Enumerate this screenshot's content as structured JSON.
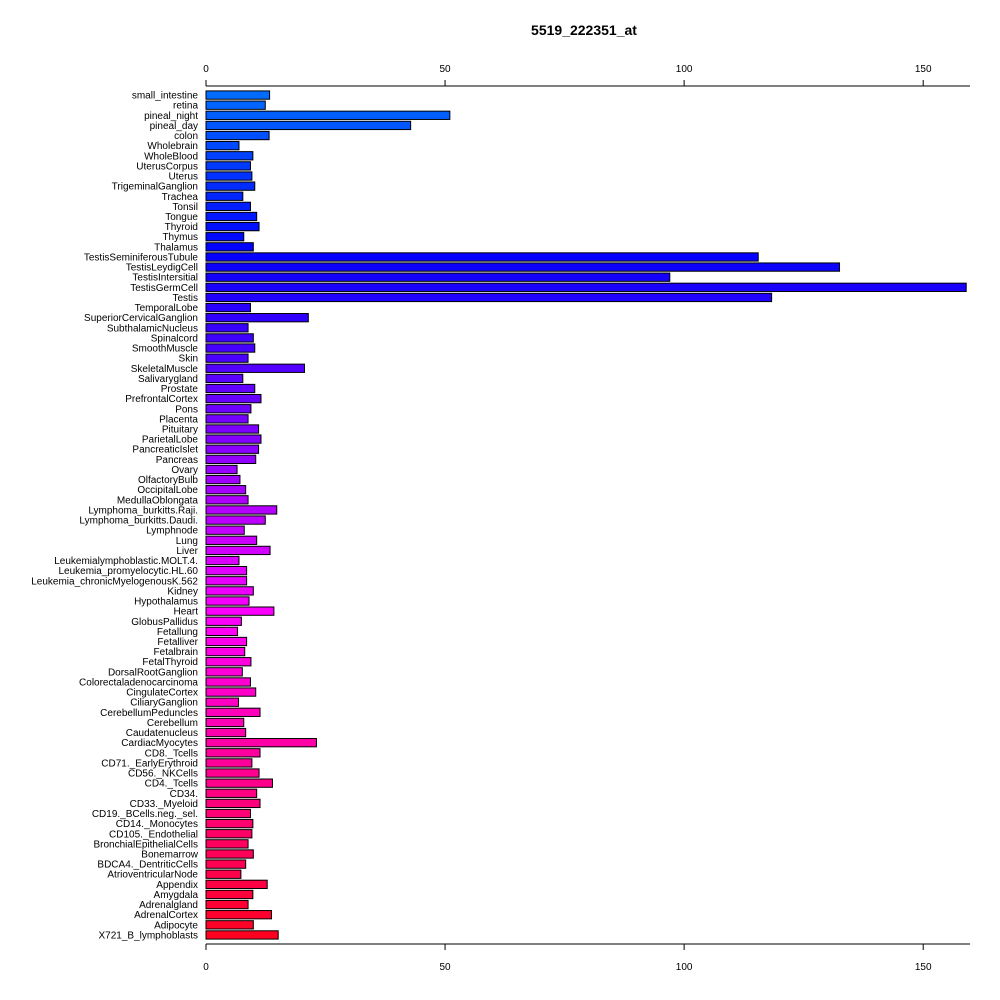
{
  "chart_data": {
    "type": "bar",
    "orientation": "horizontal",
    "title": "5519_222351_at",
    "xlim": [
      0,
      160
    ],
    "xticks": [
      0,
      50,
      100,
      150
    ],
    "axis_positions": [
      "top",
      "bottom"
    ],
    "grid": false,
    "categories": [
      "small_intestine",
      "retina",
      "pineal_night",
      "pineal_day",
      "colon",
      "Wholebrain",
      "WholeBlood",
      "UterusCorpus",
      "Uterus",
      "TrigeminalGanglion",
      "Trachea",
      "Tonsil",
      "Tongue",
      "Thyroid",
      "Thymus",
      "Thalamus",
      "TestisSeminiferousTubule",
      "TestisLeydigCell",
      "TestisIntersitial",
      "TestisGermCell",
      "Testis",
      "TemporalLobe",
      "SuperiorCervicalGanglion",
      "SubthalamicNucleus",
      "Spinalcord",
      "SmoothMuscle",
      "Skin",
      "SkeletalMuscle",
      "Salivarygland",
      "Prostate",
      "PrefrontalCortex",
      "Pons",
      "Placenta",
      "Pituitary",
      "ParietalLobe",
      "PancreaticIslet",
      "Pancreas",
      "Ovary",
      "OlfactoryBulb",
      "OccipitalLobe",
      "MedullaOblongata",
      "Lymphoma_burkitts.Raji.",
      "Lymphoma_burkitts.Daudi.",
      "Lymphnode",
      "Lung",
      "Liver",
      "Leukemialymphoblastic.MOLT.4.",
      "Leukemia_promyelocytic.HL.60",
      "Leukemia_chronicMyelogenousK.562",
      "Kidney",
      "Hypothalamus",
      "Heart",
      "GlobusPallidus",
      "Fetallung",
      "Fetalliver",
      "Fetalbrain",
      "FetalThyroid",
      "DorsalRootGanglion",
      "Colorectaladenocarcinoma",
      "CingulateCortex",
      "CiliaryGanglion",
      "CerebellumPeduncles",
      "Cerebellum",
      "Caudatenucleus",
      "CardiacMyocytes",
      "CD8._Tcells",
      "CD71._EarlyErythroid",
      "CD56._NKCells",
      "CD4._Tcells",
      "CD34.",
      "CD33._Myeloid",
      "CD19._BCells.neg._sel.",
      "CD14._Monocytes",
      "CD105._Endothelial",
      "BronchialEpithelialCells",
      "Bonemarrow",
      "BDCA4._DentriticCells",
      "AtrioventricularNode",
      "Appendix",
      "Amygdala",
      "Adrenalgland",
      "AdrenalCortex",
      "Adipocyte",
      "X721_B_lymphoblasts"
    ],
    "values": [
      13.3,
      12.4,
      51.0,
      42.8,
      13.2,
      6.9,
      9.8,
      9.3,
      9.6,
      10.2,
      7.7,
      9.3,
      10.6,
      11.1,
      7.9,
      9.9,
      115.5,
      132.5,
      97.0,
      159.0,
      118.3,
      9.3,
      21.4,
      8.8,
      9.9,
      10.2,
      8.8,
      20.6,
      7.7,
      10.2,
      11.5,
      9.4,
      8.8,
      11.0,
      11.5,
      11.0,
      10.4,
      6.5,
      7.1,
      8.3,
      8.8,
      14.8,
      12.4,
      8.0,
      10.6,
      13.4,
      6.9,
      8.5,
      8.5,
      9.9,
      9.0,
      14.2,
      7.4,
      6.6,
      8.5,
      8.1,
      9.4,
      7.6,
      9.3,
      10.4,
      6.8,
      11.3,
      7.9,
      8.3,
      23.1,
      11.3,
      9.6,
      11.1,
      13.9,
      10.6,
      11.3,
      9.3,
      9.8,
      9.6,
      8.8,
      9.9,
      8.3,
      7.3,
      12.8,
      9.8,
      8.8,
      13.7,
      9.9,
      15.1
    ],
    "colors": [
      "#FF0020",
      "#FF0027",
      "#FF002E",
      "#FF0035",
      "#FF003C",
      "#FF0044",
      "#FF004B",
      "#FF0052",
      "#FF0059",
      "#FF0060",
      "#FF0067",
      "#FF006E",
      "#FF0075",
      "#FF007C",
      "#FF0083",
      "#FF008A",
      "#FF0091",
      "#FF0098",
      "#FF009F",
      "#FF00A6",
      "#FF00AD",
      "#FF00B4",
      "#FF00BB",
      "#FF00C2",
      "#FF00C9",
      "#FF00D1",
      "#FF00D8",
      "#FF00DF",
      "#FF00E6",
      "#FF00ED",
      "#FF00F4",
      "#FF00FB",
      "#FC00FF",
      "#F500FF",
      "#EE00FF",
      "#E700FF",
      "#E000FF",
      "#D900FF",
      "#D200FF",
      "#CB00FF",
      "#C400FF",
      "#BC00FF",
      "#B500FF",
      "#AE00FF",
      "#A700FF",
      "#A000FF",
      "#9900FF",
      "#9200FF",
      "#8B00FF",
      "#8400FF",
      "#7D00FF",
      "#7600FF",
      "#6F00FF",
      "#6800FF",
      "#6100FF",
      "#5A00FF",
      "#5300FF",
      "#4C00FF",
      "#4500FF",
      "#3E00FF",
      "#3700FF",
      "#2F00FF",
      "#2800FF",
      "#2100FF",
      "#1A00FF",
      "#1300FF",
      "#0C00FF",
      "#0500FF",
      "#0002FF",
      "#0009FF",
      "#0010FF",
      "#0017FF",
      "#001EFF",
      "#0025FF",
      "#002CFF",
      "#0033FF",
      "#003AFF",
      "#0042FF",
      "#0049FF",
      "#0050FF",
      "#0057FF",
      "#005EFF",
      "#0065FF",
      "#006CFF"
    ]
  }
}
